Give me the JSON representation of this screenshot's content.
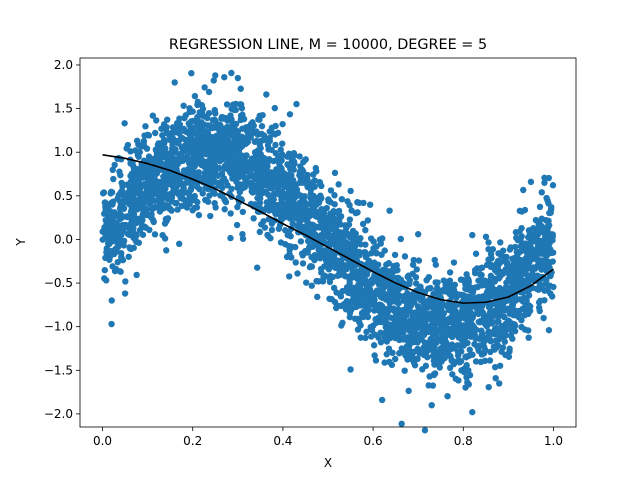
{
  "chart_data": {
    "type": "scatter",
    "title": "REGRESSION LINE, M  = 10000, DEGREE = 5",
    "xlabel": "X",
    "ylabel": "Y",
    "xlim": [
      -0.05,
      1.05
    ],
    "ylim": [
      -2.15,
      2.08
    ],
    "xticks": [
      0.0,
      0.2,
      0.4,
      0.6,
      0.8,
      1.0
    ],
    "xtick_labels": [
      "0.0",
      "0.2",
      "0.4",
      "0.6",
      "0.8",
      "1.0"
    ],
    "yticks": [
      -2.0,
      -1.5,
      -1.0,
      -0.5,
      0.0,
      0.5,
      1.0,
      1.5,
      2.0
    ],
    "ytick_labels": [
      "−2.0",
      "−1.5",
      "−1.0",
      "−0.5",
      "0.0",
      "0.5",
      "1.0",
      "1.5",
      "2.0"
    ],
    "grid": false,
    "series": [
      {
        "kind": "scatter",
        "color": "#1f77b4",
        "n_points": 10000,
        "trend": "sin(2*pi*x)",
        "noise_sd": 0.3,
        "x_range": [
          0.0,
          1.0
        ],
        "sample_points": [
          [
            0.02,
            -0.97
          ],
          [
            0.25,
            1.88
          ],
          [
            0.27,
            1.86
          ],
          [
            0.82,
            -1.98
          ],
          [
            0.62,
            -1.84
          ],
          [
            0.16,
            1.8
          ],
          [
            0.3,
            1.85
          ],
          [
            0.73,
            -1.9
          ],
          [
            0.05,
            -0.62
          ],
          [
            0.1,
            1.2
          ],
          [
            0.95,
            0.66
          ],
          [
            0.98,
            0.65
          ],
          [
            0.99,
            -1.04
          ],
          [
            0.93,
            0.32
          ],
          [
            0.17,
            -0.05
          ],
          [
            0.48,
            0.42
          ],
          [
            0.5,
            0.12
          ],
          [
            0.7,
            0.06
          ],
          [
            0.55,
            -1.49
          ],
          [
            0.82,
            0.05
          ]
        ]
      },
      {
        "kind": "line",
        "color": "#000000",
        "degree": 5,
        "x": [
          0.0,
          0.05,
          0.1,
          0.15,
          0.2,
          0.25,
          0.3,
          0.35,
          0.4,
          0.45,
          0.5,
          0.55,
          0.6,
          0.65,
          0.7,
          0.75,
          0.8,
          0.85,
          0.9,
          0.95,
          1.0
        ],
        "y": [
          0.97,
          0.93,
          0.87,
          0.79,
          0.69,
          0.58,
          0.45,
          0.32,
          0.18,
          0.05,
          -0.09,
          -0.23,
          -0.37,
          -0.5,
          -0.61,
          -0.69,
          -0.73,
          -0.72,
          -0.66,
          -0.53,
          -0.34
        ]
      }
    ]
  }
}
